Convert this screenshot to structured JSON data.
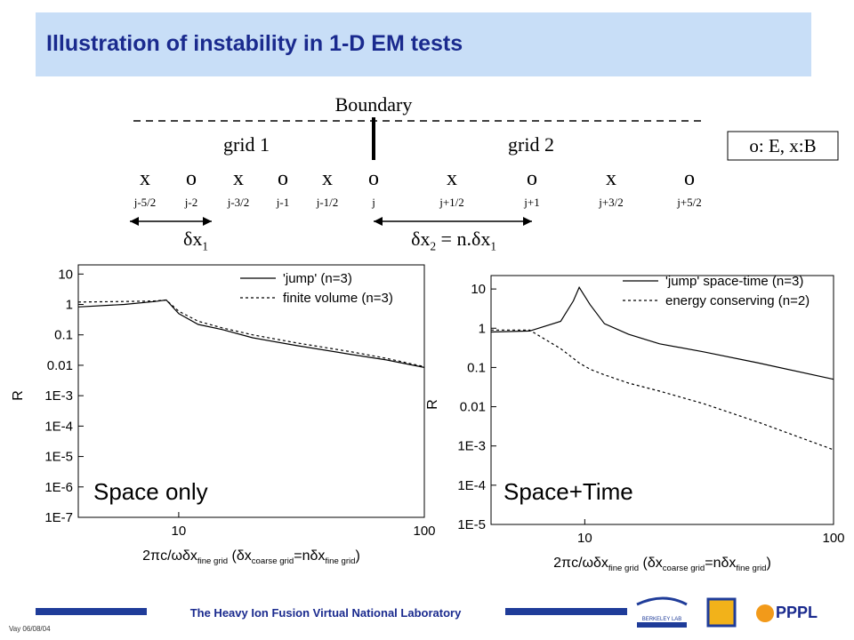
{
  "header": {
    "title": "Illustration of instability in 1-D EM tests"
  },
  "diagram": {
    "boundary": "Boundary",
    "grid1": "grid 1",
    "grid2": "grid 2",
    "legend": "o: E, x:B",
    "symbols": [
      "x",
      "o",
      "x",
      "o",
      "x",
      "o",
      "x",
      "o",
      "x",
      "o"
    ],
    "indices": [
      "j-5/2",
      "j-2",
      "j-3/2",
      "j-1",
      "j-1/2",
      "j",
      "j+1/2",
      "j+1",
      "j+3/2",
      "j+5/2"
    ],
    "spacing1": [
      "δx",
      "1"
    ],
    "spacing2": [
      "δx",
      "2",
      " = n.δx",
      "1"
    ]
  },
  "chart_data": [
    {
      "type": "line",
      "log_x": true,
      "log_y": true,
      "ylabel": "R",
      "annotation": "Space only",
      "xlabel": [
        "2πc/ωδx",
        "fine grid",
        " (δx",
        "coarse grid",
        "=nδx",
        "fine grid",
        ")"
      ],
      "xlim": [
        3.9,
        100
      ],
      "ylim": [
        1e-07,
        20
      ],
      "xticks": [
        10,
        100
      ],
      "yticks": [
        10,
        1,
        0.1,
        0.01,
        {
          "value": 0.001,
          "label": "1E-3"
        },
        {
          "value": 0.0001,
          "label": "1E-4"
        },
        {
          "value": 1e-05,
          "label": "1E-5"
        },
        {
          "value": 1e-06,
          "label": "1E-6"
        },
        {
          "value": 1e-07,
          "label": "1E-7"
        }
      ],
      "x": [
        3.9,
        6,
        8,
        8.9,
        10,
        12,
        15,
        20,
        30,
        50,
        70,
        100
      ],
      "series": [
        {
          "name": "'jump' (n=3)",
          "color": "#000000",
          "style": "solid",
          "values": [
            0.83,
            1,
            1.25,
            1.4,
            0.5,
            0.22,
            0.15,
            0.08,
            0.045,
            0.023,
            0.015,
            0.0085
          ]
        },
        {
          "name": "finite volume (n=3)",
          "color": "#000000",
          "style": "dotted",
          "values": [
            1.2,
            1.25,
            1.3,
            1.4,
            0.6,
            0.28,
            0.17,
            0.1,
            0.055,
            0.028,
            0.017,
            0.009
          ]
        }
      ]
    },
    {
      "type": "line",
      "log_x": true,
      "log_y": true,
      "ylabel": "R",
      "annotation": "Space+Time",
      "xlabel": [
        "2πc/ωδx",
        "fine grid",
        " (δx",
        "coarse grid",
        "=nδx",
        "fine grid",
        ")"
      ],
      "xlim": [
        4.2,
        100
      ],
      "ylim": [
        1e-05,
        22
      ],
      "xticks": [
        10,
        100
      ],
      "yticks": [
        10,
        1,
        0.1,
        0.01,
        {
          "value": 0.001,
          "label": "1E-3"
        },
        {
          "value": 0.0001,
          "label": "1E-4"
        },
        {
          "value": 1e-05,
          "label": "1E-5"
        }
      ],
      "x": [
        4.2,
        6,
        8,
        9,
        9.5,
        10.5,
        12,
        15,
        20,
        30,
        50,
        100
      ],
      "series": [
        {
          "name": "'jump' space-time (n=3)",
          "color": "#000000",
          "style": "solid",
          "values": [
            0.8,
            0.85,
            1.5,
            5,
            11,
            4,
            1.3,
            0.7,
            0.4,
            0.25,
            0.13,
            0.05
          ]
        },
        {
          "name": "energy conserving (n=2)",
          "color": "#000000",
          "style": "dotted",
          "values": [
            0.9,
            0.9,
            0.3,
            0.17,
            0.13,
            0.09,
            0.065,
            0.04,
            0.025,
            0.012,
            0.004,
            0.0008
          ]
        }
      ]
    }
  ],
  "footer": {
    "lab": "The Heavy Ion Fusion Virtual National Laboratory",
    "date": "Vay 06/08/04",
    "logo1": "BERKELEY LAB",
    "logo2": "PPPL"
  }
}
